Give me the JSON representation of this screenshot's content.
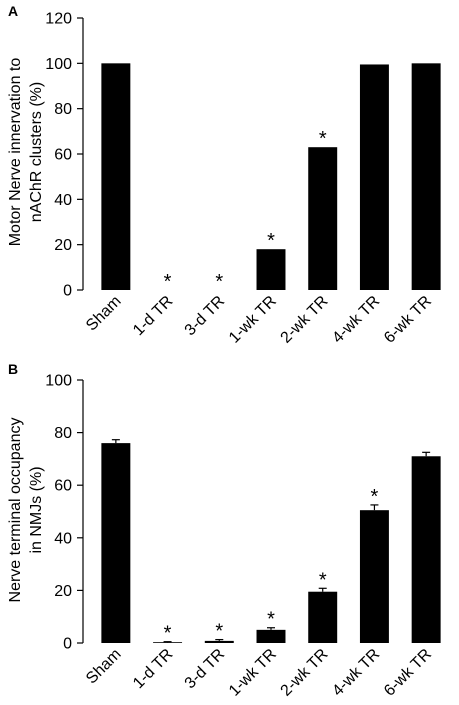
{
  "chart_data": [
    {
      "panel_label": "A",
      "type": "bar",
      "ylabel_lines": [
        "Motor Nerve innervation to",
        "nAChR clusters (%)"
      ],
      "ylim": [
        0,
        120
      ],
      "yticks": [
        "0",
        "20",
        "40",
        "60",
        "80",
        "100",
        "120"
      ],
      "categories": [
        "Sham",
        "1-d TR",
        "3-d TR",
        "1-wk TR",
        "2-wk TR",
        "4-wk TR",
        "6-wk TR"
      ],
      "values": [
        100,
        0,
        0,
        18,
        63,
        99.5,
        100
      ],
      "errors": [
        0,
        0,
        0,
        0,
        0,
        0,
        0
      ],
      "significance": [
        "",
        "*",
        "*",
        "*",
        "*",
        "",
        ""
      ],
      "bar_color": "#000000"
    },
    {
      "panel_label": "B",
      "type": "bar",
      "ylabel_lines": [
        "Nerve terminal occupancy",
        "in NMJs (%)"
      ],
      "ylim": [
        0,
        100
      ],
      "yticks": [
        "0",
        "20",
        "40",
        "60",
        "80",
        "100"
      ],
      "categories": [
        "Sham",
        "1-d TR",
        "3-d TR",
        "1-wk TR",
        "2-wk TR",
        "4-wk TR",
        "6-wk TR"
      ],
      "values": [
        76,
        0.3,
        0.8,
        5,
        19.5,
        50.5,
        71
      ],
      "errors": [
        1.3,
        0.2,
        0.5,
        0.8,
        1.3,
        2,
        1.5
      ],
      "significance": [
        "",
        "*",
        "*",
        "*",
        "*",
        "*",
        ""
      ],
      "bar_color": "#000000"
    }
  ]
}
